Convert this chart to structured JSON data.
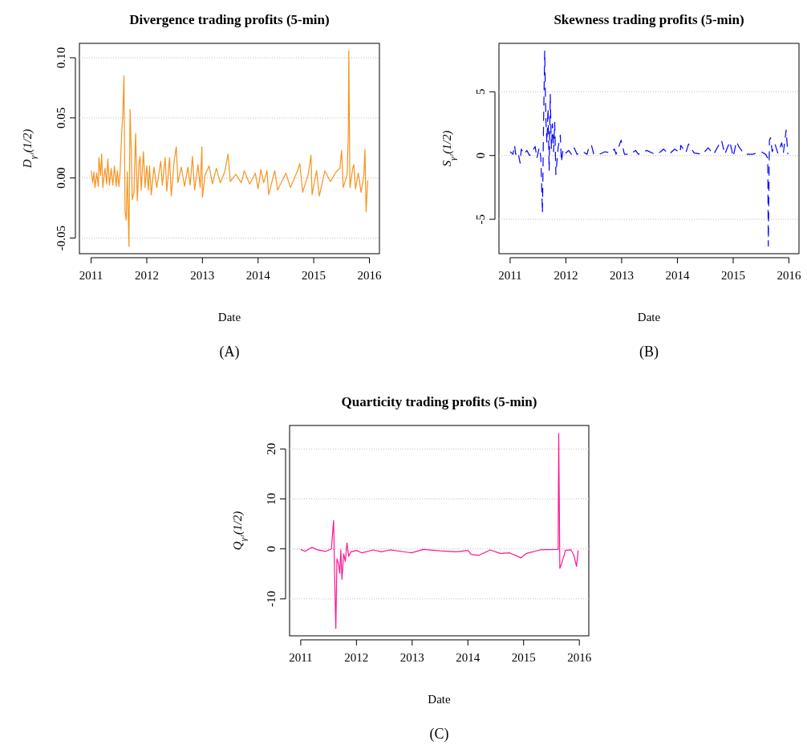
{
  "chart_data": [
    {
      "type": "line",
      "title": "Divergence trading profits (5-min)",
      "xlabel": "Date",
      "ylabel": "D$_{γᴶ}$(1/2)",
      "annotations": [
        "(A)"
      ],
      "grid": "y",
      "xlim": [
        2010.79,
        2016.18
      ],
      "xticks": [
        2011,
        2012,
        2013,
        2014,
        2015,
        2016
      ],
      "ylim": [
        -0.063,
        0.112
      ],
      "yticks": [
        {
          "value": -0.05,
          "label": "-0.05"
        },
        {
          "value": 0,
          "label": "0.00"
        },
        {
          "value": 0.05,
          "label": "0.05"
        },
        {
          "value": 0.1,
          "label": "0.10"
        }
      ],
      "series": [
        {
          "color": "#f7931e",
          "line_style": "solid",
          "x": [
            2011.0,
            2011.03,
            2011.05,
            2011.07,
            2011.1,
            2011.13,
            2011.14,
            2011.17,
            2011.19,
            2011.21,
            2011.25,
            2011.28,
            2011.3,
            2011.33,
            2011.36,
            2011.39,
            2011.42,
            2011.45,
            2011.47,
            2011.5,
            2011.52,
            2011.55,
            2011.57,
            2011.59,
            2011.61,
            2011.63,
            2011.65,
            2011.68,
            2011.7,
            2011.72,
            2011.74,
            2011.77,
            2011.8,
            2011.83,
            2011.86,
            2011.88,
            2011.9,
            2011.94,
            2011.97,
            2012.0,
            2012.03,
            2012.05,
            2012.08,
            2012.13,
            2012.18,
            2012.25,
            2012.28,
            2012.33,
            2012.36,
            2012.41,
            2012.44,
            2012.49,
            2012.53,
            2012.56,
            2012.62,
            2012.68,
            2012.74,
            2012.78,
            2012.82,
            2012.86,
            2012.92,
            2012.96,
            2012.99,
            2013.0,
            2013.05,
            2013.12,
            2013.18,
            2013.25,
            2013.32,
            2013.4,
            2013.46,
            2013.5,
            2013.6,
            2013.7,
            2013.75,
            2013.85,
            2013.95,
            2014.0,
            2014.05,
            2014.1,
            2014.16,
            2014.19,
            2014.3,
            2014.35,
            2014.5,
            2014.58,
            2014.7,
            2014.75,
            2014.8,
            2014.9,
            2014.95,
            2014.97,
            2015.05,
            2015.1,
            2015.2,
            2015.3,
            2015.4,
            2015.47,
            2015.5,
            2015.53,
            2015.6,
            2015.62,
            2015.63,
            2015.65,
            2015.7,
            2015.72,
            2015.75,
            2015.8,
            2015.85,
            2015.9,
            2015.92,
            2015.94,
            2015.97
          ],
          "values": [
            0.006,
            -0.004,
            0.005,
            -0.008,
            0.004,
            -0.007,
            0.017,
            0.002,
            0.02,
            -0.008,
            0.008,
            -0.005,
            0.016,
            -0.006,
            0.008,
            -0.006,
            0.01,
            -0.007,
            0.006,
            -0.007,
            0.005,
            0.038,
            0.053,
            0.085,
            -0.028,
            -0.035,
            0.005,
            -0.057,
            0.057,
            0.025,
            -0.018,
            -0.012,
            0.037,
            -0.019,
            0.012,
            0.018,
            -0.01,
            0.022,
            -0.008,
            0.01,
            -0.01,
            0.01,
            -0.014,
            0.009,
            -0.008,
            0.014,
            -0.006,
            0.017,
            -0.011,
            0.017,
            -0.015,
            0.013,
            0.026,
            -0.004,
            0.009,
            -0.007,
            0.009,
            -0.006,
            0.018,
            -0.01,
            0.011,
            -0.008,
            0.026,
            -0.016,
            0.003,
            0.01,
            -0.005,
            0.008,
            -0.004,
            0.005,
            0.02,
            -0.003,
            0.003,
            -0.004,
            0.006,
            -0.005,
            0.004,
            -0.009,
            0.007,
            -0.004,
            0.006,
            -0.014,
            0.006,
            -0.01,
            0.004,
            -0.008,
            0.005,
            0.012,
            -0.012,
            0.003,
            0.019,
            -0.014,
            0.006,
            -0.015,
            0.006,
            -0.003,
            0.005,
            0.008,
            0.023,
            -0.008,
            0.003,
            0.035,
            0.106,
            -0.008,
            0.008,
            0.011,
            -0.009,
            0.004,
            -0.012,
            0.002,
            0.024,
            -0.028,
            -0.002
          ]
        }
      ]
    },
    {
      "type": "line",
      "title": "Skewness trading profits (5-min)",
      "xlabel": "Date",
      "ylabel": "S$_{γᴶ}$(1/2)",
      "annotations": [
        "(B)"
      ],
      "grid": "y",
      "xlim": [
        2010.8,
        2016.18
      ],
      "xticks": [
        2011,
        2012,
        2013,
        2014,
        2015,
        2016
      ],
      "ylim": [
        -7.7,
        8.8
      ],
      "yticks": [
        -5,
        0,
        5
      ],
      "series": [
        {
          "color": "#0000ff",
          "line_style": "dashed",
          "x": [
            2011.0,
            2011.05,
            2011.08,
            2011.1,
            2011.14,
            2011.18,
            2011.2,
            2011.25,
            2011.3,
            2011.35,
            2011.42,
            2011.45,
            2011.48,
            2011.52,
            2011.55,
            2011.58,
            2011.6,
            2011.62,
            2011.64,
            2011.66,
            2011.68,
            2011.7,
            2011.72,
            2011.74,
            2011.76,
            2011.78,
            2011.8,
            2011.82,
            2011.86,
            2011.9,
            2011.92,
            2011.95,
            2012.0,
            2012.05,
            2012.1,
            2012.15,
            2012.2,
            2012.3,
            2012.38,
            2012.42,
            2012.46,
            2012.5,
            2012.6,
            2012.7,
            2012.8,
            2012.87,
            2012.9,
            2012.99,
            2013.05,
            2013.15,
            2013.25,
            2013.3,
            2013.45,
            2013.6,
            2013.7,
            2013.75,
            2013.85,
            2013.95,
            2014.05,
            2014.06,
            2014.15,
            2014.2,
            2014.3,
            2014.45,
            2014.55,
            2014.65,
            2014.79,
            2014.85,
            2014.94,
            2015.0,
            2015.06,
            2015.1,
            2015.2,
            2015.35,
            2015.5,
            2015.58,
            2015.62,
            2015.63,
            2015.65,
            2015.67,
            2015.7,
            2015.75,
            2015.8,
            2015.87,
            2015.9,
            2015.95,
            2015.98
          ],
          "values": [
            0.3,
            0.1,
            0.8,
            0.1,
            0.3,
            -0.6,
            0.5,
            0.1,
            0.4,
            0,
            0.5,
            0.7,
            -0.2,
            0.6,
            -0.1,
            -4.5,
            2.6,
            8.2,
            3.0,
            1.0,
            3.7,
            -1.2,
            4.8,
            0.5,
            2.5,
            0.3,
            2.6,
            -1.5,
            0.6,
            1.6,
            -0.5,
            0.5,
            0.2,
            0.4,
            0.1,
            0.6,
            0.1,
            0.3,
            0.1,
            0.8,
            0.8,
            0.1,
            0.1,
            0.3,
            0.2,
            0.5,
            0.1,
            1.2,
            0.1,
            0.1,
            0.4,
            0.1,
            0.4,
            0.1,
            0.3,
            0.5,
            0.1,
            0.5,
            0.2,
            0.8,
            0.2,
            0.9,
            0.2,
            0.1,
            0.6,
            0.1,
            1.2,
            0.1,
            1.1,
            -0.1,
            1.1,
            0.7,
            0.1,
            0.1,
            0.3,
            0.1,
            -0.2,
            -7.1,
            1.2,
            1.4,
            0.3,
            0.9,
            0.2,
            1.0,
            0.2,
            2.0,
            0.1
          ]
        }
      ]
    },
    {
      "type": "line",
      "title": "Quarticity trading profits (5-min)",
      "xlabel": "Date",
      "ylabel": "Q$_{γᴶ}$(1/2)",
      "annotations": [
        "(C)"
      ],
      "grid": "y",
      "xlim": [
        2010.8,
        2016.17
      ],
      "xticks": [
        2011,
        2012,
        2013,
        2014,
        2015,
        2016
      ],
      "ylim": [
        -17.4,
        24.7
      ],
      "yticks": [
        -10,
        0,
        10,
        20
      ],
      "series": [
        {
          "color": "#ff1493",
          "line_style": "solid",
          "x": [
            2011.0,
            2011.08,
            2011.2,
            2011.3,
            2011.45,
            2011.55,
            2011.59,
            2011.61,
            2011.63,
            2011.65,
            2011.68,
            2011.7,
            2011.72,
            2011.74,
            2011.77,
            2011.8,
            2011.83,
            2011.86,
            2011.9,
            2012.0,
            2012.1,
            2012.3,
            2012.45,
            2012.6,
            2012.99,
            2013.2,
            2013.5,
            2013.8,
            2014.0,
            2014.06,
            2014.2,
            2014.4,
            2014.58,
            2014.75,
            2014.95,
            2015.05,
            2015.3,
            2015.62,
            2015.63,
            2015.65,
            2015.68,
            2015.72,
            2015.75,
            2015.85,
            2015.9,
            2015.95,
            2015.98
          ],
          "values": [
            -0.1,
            -0.5,
            0.3,
            -0.2,
            -0.5,
            0,
            5.7,
            -6.2,
            -15.9,
            -2.0,
            -3.0,
            -4.9,
            -0.2,
            -6.1,
            -1.0,
            -2.5,
            1.2,
            -1.5,
            -0.6,
            -0.3,
            -0.8,
            -0.2,
            -0.6,
            -0.2,
            -0.8,
            -0.1,
            -0.4,
            -0.6,
            -0.3,
            -1.1,
            -1.3,
            -0.2,
            -0.9,
            -0.8,
            -1.8,
            -0.9,
            -0.2,
            -0.1,
            23.1,
            -3.9,
            -3.0,
            -1.5,
            -0.3,
            -0.2,
            -1.2,
            -3.5,
            -0.3
          ]
        }
      ]
    }
  ]
}
